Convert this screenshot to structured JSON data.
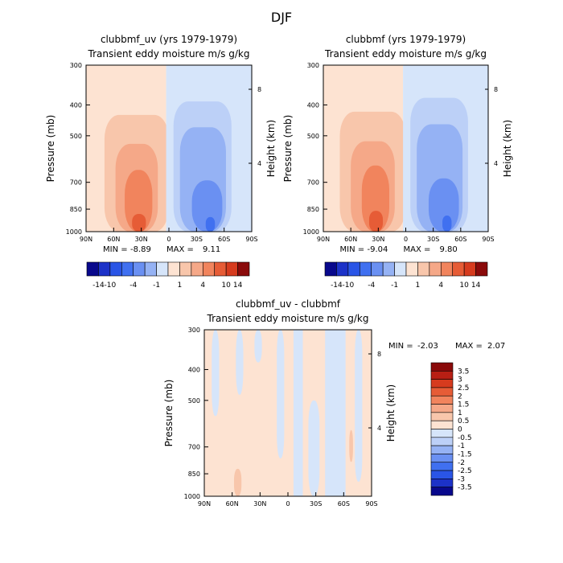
{
  "page_title": "DJF",
  "colors": {
    "neg_scale": [
      "#08088c",
      "#1c32c8",
      "#2a55e6",
      "#4070f0",
      "#6a90f2",
      "#95b2f4",
      "#bcd0f7",
      "#d6e5fa"
    ],
    "pos_scale": [
      "#fde3d2",
      "#f8c6ab",
      "#f5a888",
      "#f1845d",
      "#e65c36",
      "#d63b1e",
      "#b81f14",
      "#8a0a0a"
    ]
  },
  "chart_data": [
    {
      "id": "panel1",
      "type": "heatmap",
      "title": "clubbmf_uv (yrs 1979-1979)",
      "subtitle": "Transient eddy moisture m/s g/kg",
      "ylabel": "Pressure (mb)",
      "y2label": "Height (km)",
      "x_ticks": [
        "90N",
        "60N",
        "30N",
        "0",
        "30S",
        "60S",
        "90S"
      ],
      "x_values": [
        90,
        60,
        30,
        0,
        -30,
        -60,
        -90
      ],
      "y_ticks": [
        "300",
        "400",
        "500",
        "700",
        "850",
        "1000"
      ],
      "y_values": [
        300,
        400,
        500,
        700,
        850,
        1000
      ],
      "y2_ticks": [
        "8",
        "4"
      ],
      "y2_values": [
        8,
        4
      ],
      "min_label": "MIN =",
      "min": "-8.89",
      "max_label": "MAX =",
      "max": "9.11",
      "ylim": [
        300,
        1000
      ],
      "xlim": [
        90,
        -90
      ],
      "regions": [
        {
          "lat": [
            90,
            3
          ],
          "plev": [
            300,
            1000
          ],
          "level": 1
        },
        {
          "lat": [
            70,
            0
          ],
          "plev": [
            430,
            1000
          ],
          "level": 2
        },
        {
          "lat": [
            58,
            12
          ],
          "plev": [
            530,
            1000
          ],
          "level": 3
        },
        {
          "lat": [
            48,
            18
          ],
          "plev": [
            640,
            1000
          ],
          "level": 4
        },
        {
          "lat": [
            40,
            25
          ],
          "plev": [
            880,
            1000
          ],
          "level": 5
        },
        {
          "lat": [
            3,
            -90
          ],
          "plev": [
            300,
            1000
          ],
          "level": -1
        },
        {
          "lat": [
            -5,
            -68
          ],
          "plev": [
            390,
            1000
          ],
          "level": -2
        },
        {
          "lat": [
            -12,
            -62
          ],
          "plev": [
            470,
            1000
          ],
          "level": -3
        },
        {
          "lat": [
            -25,
            -58
          ],
          "plev": [
            690,
            1000
          ],
          "level": -4
        },
        {
          "lat": [
            -40,
            -50
          ],
          "plev": [
            900,
            1000
          ],
          "level": -5
        }
      ]
    },
    {
      "id": "panel2",
      "type": "heatmap",
      "title": "clubbmf (yrs 1979-1979)",
      "subtitle": "Transient eddy moisture m/s g/kg",
      "ylabel": "Pressure (mb)",
      "y2label": "Height (km)",
      "x_ticks": [
        "90N",
        "60N",
        "30N",
        "0",
        "30S",
        "60S",
        "90S"
      ],
      "x_values": [
        90,
        60,
        30,
        0,
        -30,
        -60,
        -90
      ],
      "y_ticks": [
        "300",
        "400",
        "500",
        "700",
        "850",
        "1000"
      ],
      "y_values": [
        300,
        400,
        500,
        700,
        850,
        1000
      ],
      "y2_ticks": [
        "8",
        "4"
      ],
      "y2_values": [
        8,
        4
      ],
      "min_label": "MIN =",
      "min": "-9.04",
      "max_label": "MAX =",
      "max": "9.80",
      "ylim": [
        300,
        1000
      ],
      "xlim": [
        90,
        -90
      ],
      "regions": [
        {
          "lat": [
            90,
            3
          ],
          "plev": [
            300,
            1000
          ],
          "level": 1
        },
        {
          "lat": [
            72,
            0
          ],
          "plev": [
            420,
            1000
          ],
          "level": 2
        },
        {
          "lat": [
            60,
            12
          ],
          "plev": [
            520,
            1000
          ],
          "level": 3
        },
        {
          "lat": [
            48,
            18
          ],
          "plev": [
            620,
            1000
          ],
          "level": 4
        },
        {
          "lat": [
            40,
            25
          ],
          "plev": [
            860,
            1000
          ],
          "level": 5
        },
        {
          "lat": [
            3,
            -90
          ],
          "plev": [
            300,
            1000
          ],
          "level": -1
        },
        {
          "lat": [
            -5,
            -68
          ],
          "plev": [
            380,
            1000
          ],
          "level": -2
        },
        {
          "lat": [
            -12,
            -62
          ],
          "plev": [
            460,
            1000
          ],
          "level": -3
        },
        {
          "lat": [
            -25,
            -58
          ],
          "plev": [
            680,
            1000
          ],
          "level": -4
        },
        {
          "lat": [
            -40,
            -50
          ],
          "plev": [
            890,
            1000
          ],
          "level": -5
        }
      ]
    },
    {
      "id": "panel3",
      "type": "heatmap",
      "title": "clubbmf_uv - clubbmf",
      "subtitle": "Transient eddy moisture m/s g/kg",
      "ylabel": "Pressure (mb)",
      "y2label": "Height (km)",
      "x_ticks": [
        "90N",
        "60N",
        "30N",
        "0",
        "30S",
        "60S",
        "90S"
      ],
      "x_values": [
        90,
        60,
        30,
        0,
        -30,
        -60,
        -90
      ],
      "y_ticks": [
        "300",
        "400",
        "500",
        "700",
        "850",
        "1000"
      ],
      "y_values": [
        300,
        400,
        500,
        700,
        850,
        1000
      ],
      "y2_ticks": [
        "8",
        "4"
      ],
      "y2_values": [
        8,
        4
      ],
      "min_label": "MIN =",
      "min": "-2.03",
      "max_label": "MAX =",
      "max": "2.07",
      "ylim": [
        300,
        1000
      ],
      "xlim": [
        90,
        -90
      ],
      "regions": [
        {
          "lat": [
            90,
            -90
          ],
          "plev": [
            300,
            1000
          ],
          "level": 1
        },
        {
          "lat": [
            82,
            74
          ],
          "plev": [
            300,
            560
          ],
          "level": -1
        },
        {
          "lat": [
            56,
            48
          ],
          "plev": [
            300,
            480
          ],
          "level": -1
        },
        {
          "lat": [
            36,
            28
          ],
          "plev": [
            300,
            380
          ],
          "level": -1
        },
        {
          "lat": [
            12,
            4
          ],
          "plev": [
            300,
            760
          ],
          "level": -1
        },
        {
          "lat": [
            -6,
            -16
          ],
          "plev": [
            300,
            1000
          ],
          "level": -1
        },
        {
          "lat": [
            -22,
            -34
          ],
          "plev": [
            500,
            1000
          ],
          "level": -1
        },
        {
          "lat": [
            -40,
            -62
          ],
          "plev": [
            300,
            1000
          ],
          "level": -1
        },
        {
          "lat": [
            -72,
            -80
          ],
          "plev": [
            300,
            900
          ],
          "level": -1
        },
        {
          "lat": [
            58,
            50
          ],
          "plev": [
            820,
            1000
          ],
          "level": 2
        },
        {
          "lat": [
            -66,
            -70
          ],
          "plev": [
            620,
            780
          ],
          "level": 2
        }
      ]
    }
  ],
  "colorbar_top": {
    "labels": [
      "-14",
      "-10",
      "-4",
      "-1",
      "1",
      "4",
      "10",
      "14"
    ],
    "levels": [
      -14,
      -10,
      -7,
      -4,
      -2,
      -1,
      0,
      1,
      2,
      4,
      7,
      10,
      14
    ],
    "colors": [
      "#08088c",
      "#1c32c8",
      "#2a55e6",
      "#4070f0",
      "#6a90f2",
      "#95b2f4",
      "#d6e5fa",
      "#fde3d2",
      "#f8c6ab",
      "#f5a888",
      "#f1845d",
      "#e65c36",
      "#d63b1e",
      "#8a0a0a"
    ]
  },
  "colorbar_diff": {
    "labels": [
      "3.5",
      "3",
      "2.5",
      "2",
      "1.5",
      "1",
      "0.5",
      "0",
      "-0.5",
      "-1",
      "-1.5",
      "-2",
      "-2.5",
      "-3",
      "-3.5"
    ],
    "colors": [
      "#8a0a0a",
      "#b81f14",
      "#d63b1e",
      "#e65c36",
      "#f1845d",
      "#f5a888",
      "#f8c6ab",
      "#fde3d2",
      "#d6e5fa",
      "#bcd0f7",
      "#95b2f4",
      "#6a90f2",
      "#4070f0",
      "#2a55e6",
      "#1c32c8",
      "#08088c"
    ]
  }
}
